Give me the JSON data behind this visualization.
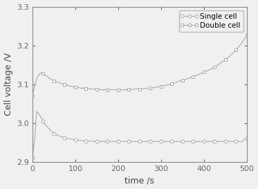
{
  "title": "",
  "xlabel": "time /s",
  "ylabel": "Cell voltage /V",
  "xlim": [
    0,
    500
  ],
  "ylim": [
    2.9,
    3.3
  ],
  "yticks": [
    2.9,
    3.0,
    3.1,
    3.2,
    3.3
  ],
  "xticks": [
    0,
    100,
    200,
    300,
    400,
    500
  ],
  "single_cell_x": [
    0,
    5,
    10,
    15,
    20,
    25,
    30,
    35,
    40,
    45,
    50,
    55,
    60,
    65,
    70,
    75,
    80,
    85,
    90,
    95,
    100,
    105,
    110,
    115,
    120,
    125,
    130,
    135,
    140,
    145,
    150,
    155,
    160,
    165,
    170,
    175,
    180,
    185,
    190,
    195,
    200,
    205,
    210,
    215,
    220,
    225,
    230,
    235,
    240,
    245,
    250,
    255,
    260,
    265,
    270,
    275,
    280,
    285,
    290,
    295,
    300,
    305,
    310,
    315,
    320,
    325,
    330,
    335,
    340,
    345,
    350,
    355,
    360,
    365,
    370,
    375,
    380,
    385,
    390,
    395,
    400,
    405,
    410,
    415,
    420,
    425,
    430,
    435,
    440,
    445,
    450,
    455,
    460,
    465,
    470,
    475,
    480,
    485,
    490,
    495,
    500
  ],
  "single_cell_y": [
    2.91,
    2.955,
    3.03,
    3.025,
    3.015,
    3.005,
    2.997,
    2.99,
    2.984,
    2.979,
    2.974,
    2.971,
    2.968,
    2.966,
    2.964,
    2.962,
    2.961,
    2.96,
    2.959,
    2.958,
    2.957,
    2.956,
    2.956,
    2.955,
    2.955,
    2.954,
    2.954,
    2.954,
    2.954,
    2.953,
    2.953,
    2.953,
    2.953,
    2.953,
    2.953,
    2.953,
    2.953,
    2.953,
    2.953,
    2.953,
    2.953,
    2.953,
    2.953,
    2.953,
    2.953,
    2.953,
    2.953,
    2.953,
    2.953,
    2.953,
    2.953,
    2.953,
    2.953,
    2.953,
    2.953,
    2.953,
    2.953,
    2.953,
    2.953,
    2.953,
    2.953,
    2.953,
    2.953,
    2.953,
    2.953,
    2.953,
    2.953,
    2.953,
    2.953,
    2.953,
    2.953,
    2.953,
    2.953,
    2.953,
    2.953,
    2.953,
    2.953,
    2.953,
    2.953,
    2.953,
    2.953,
    2.953,
    2.953,
    2.953,
    2.953,
    2.953,
    2.953,
    2.953,
    2.953,
    2.953,
    2.953,
    2.953,
    2.953,
    2.953,
    2.953,
    2.953,
    2.953,
    2.953,
    2.953,
    2.96,
    2.96
  ],
  "double_cell_x": [
    0,
    5,
    10,
    15,
    20,
    25,
    30,
    35,
    40,
    45,
    50,
    55,
    60,
    65,
    70,
    75,
    80,
    85,
    90,
    95,
    100,
    105,
    110,
    115,
    120,
    125,
    130,
    135,
    140,
    145,
    150,
    155,
    160,
    165,
    170,
    175,
    180,
    185,
    190,
    195,
    200,
    205,
    210,
    215,
    220,
    225,
    230,
    235,
    240,
    245,
    250,
    255,
    260,
    265,
    270,
    275,
    280,
    285,
    290,
    295,
    300,
    305,
    310,
    315,
    320,
    325,
    330,
    335,
    340,
    345,
    350,
    355,
    360,
    365,
    370,
    375,
    380,
    385,
    390,
    395,
    400,
    405,
    410,
    415,
    420,
    425,
    430,
    435,
    440,
    445,
    450,
    455,
    460,
    465,
    470,
    475,
    480,
    485,
    490,
    495,
    500
  ],
  "double_cell_y": [
    3.07,
    3.095,
    3.115,
    3.125,
    3.13,
    3.128,
    3.124,
    3.12,
    3.115,
    3.112,
    3.109,
    3.107,
    3.105,
    3.103,
    3.101,
    3.099,
    3.097,
    3.096,
    3.095,
    3.094,
    3.093,
    3.092,
    3.091,
    3.09,
    3.09,
    3.089,
    3.089,
    3.088,
    3.088,
    3.087,
    3.087,
    3.087,
    3.086,
    3.086,
    3.086,
    3.086,
    3.086,
    3.086,
    3.086,
    3.086,
    3.086,
    3.086,
    3.086,
    3.086,
    3.086,
    3.087,
    3.087,
    3.087,
    3.088,
    3.088,
    3.088,
    3.089,
    3.089,
    3.09,
    3.09,
    3.091,
    3.091,
    3.092,
    3.093,
    3.094,
    3.095,
    3.096,
    3.097,
    3.099,
    3.1,
    3.102,
    3.103,
    3.105,
    3.107,
    3.109,
    3.11,
    3.112,
    3.114,
    3.116,
    3.118,
    3.12,
    3.122,
    3.124,
    3.127,
    3.129,
    3.131,
    3.134,
    3.136,
    3.139,
    3.142,
    3.145,
    3.148,
    3.152,
    3.156,
    3.16,
    3.164,
    3.168,
    3.173,
    3.178,
    3.183,
    3.189,
    3.195,
    3.202,
    3.21,
    3.218,
    3.226
  ],
  "line_color": "#aaaaaa",
  "bg_color": "#f0f0f0",
  "legend_labels": [
    "Single cell",
    "Double cell"
  ],
  "single_marker": "o",
  "double_marker": "s",
  "marker_size": 3.5,
  "linewidth": 0.8,
  "markevery": 5
}
